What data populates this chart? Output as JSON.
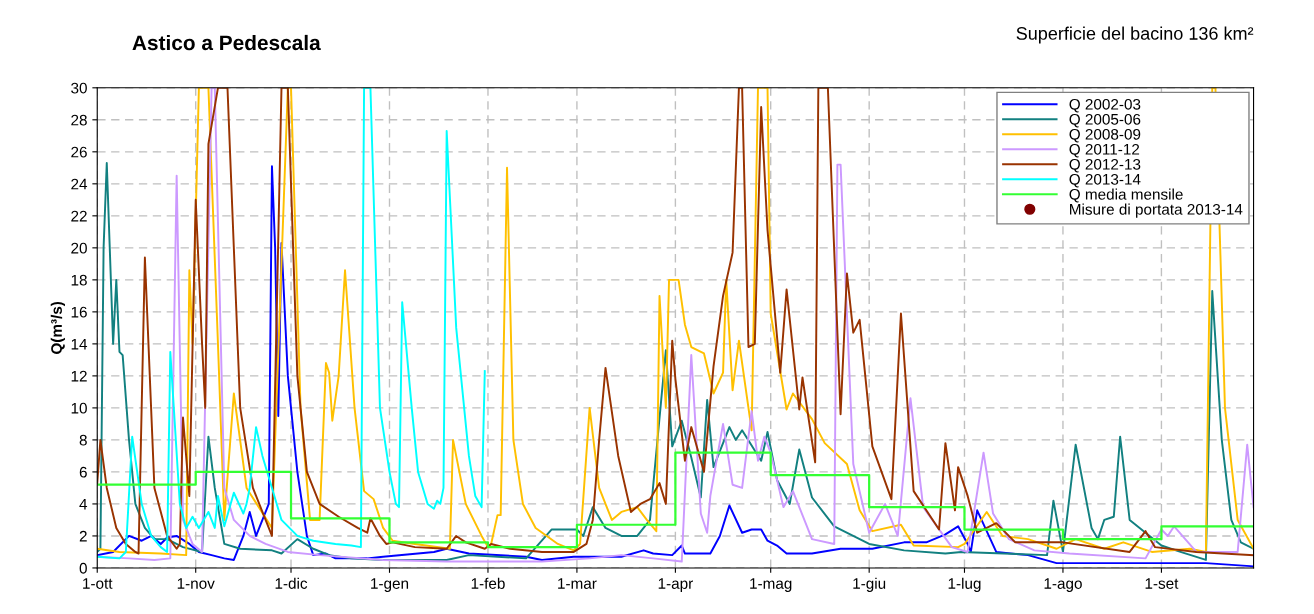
{
  "chart_data": {
    "type": "line",
    "title": "Astico a Pedescala",
    "subtitle": "Superficie del bacino 136 km²",
    "ylabel": "Q(m³/s)",
    "xlim": [
      "2013-10-01",
      "2014-09-30"
    ],
    "xticks": [
      {
        "value": "2013-10-01",
        "label": "1-ott"
      },
      {
        "value": "2013-11-01",
        "label": "1-nov"
      },
      {
        "value": "2013-12-01",
        "label": "1-dic"
      },
      {
        "value": "2014-01-01",
        "label": "1-gen"
      },
      {
        "value": "2014-02-01",
        "label": "1-feb"
      },
      {
        "value": "2014-03-01",
        "label": "1-mar"
      },
      {
        "value": "2014-04-01",
        "label": "1-apr"
      },
      {
        "value": "2014-05-01",
        "label": "1-mag"
      },
      {
        "value": "2014-06-01",
        "label": "1-giu"
      },
      {
        "value": "2014-07-01",
        "label": "1-lug"
      },
      {
        "value": "2014-08-01",
        "label": "1-ago"
      },
      {
        "value": "2014-09-01",
        "label": "1-set"
      }
    ],
    "ylim": [
      0,
      30
    ],
    "yticks": [
      0,
      2,
      4,
      6,
      8,
      10,
      12,
      14,
      16,
      18,
      20,
      22,
      24,
      26,
      28,
      30
    ],
    "grid": true,
    "legend": "top right",
    "line_style": "solid",
    "marker": "none",
    "series": [
      {
        "name": "Q 2002-03",
        "color": "#0000ff",
        "x": [
          "2013-10-01",
          "2013-10-06",
          "2013-10-11",
          "2013-10-15",
          "2013-10-18",
          "2013-10-21",
          "2013-10-23",
          "2013-10-26",
          "2013-10-30",
          "2013-11-02",
          "2013-11-06",
          "2013-11-10",
          "2013-11-13",
          "2013-11-16",
          "2013-11-18",
          "2013-11-20",
          "2013-11-22",
          "2013-11-24",
          "2013-11-25",
          "2013-11-26",
          "2013-11-27",
          "2013-11-28",
          "2013-11-30",
          "2013-12-03",
          "2013-12-06",
          "2013-12-08",
          "2013-12-12",
          "2013-12-15",
          "2013-12-25",
          "2013-12-30",
          "2014-01-15",
          "2014-01-19",
          "2014-01-26",
          "2014-02-13",
          "2014-02-18",
          "2014-02-28",
          "2014-03-15",
          "2014-03-22",
          "2014-03-25",
          "2014-03-31",
          "2014-04-03",
          "2014-04-04",
          "2014-04-12",
          "2014-04-15",
          "2014-04-18",
          "2014-04-22",
          "2014-04-25",
          "2014-04-28",
          "2014-04-30",
          "2014-05-03",
          "2014-05-06",
          "2014-05-14",
          "2014-05-23",
          "2014-06-02",
          "2014-06-12",
          "2014-06-19",
          "2014-06-25",
          "2014-06-29",
          "2014-07-02",
          "2014-07-03",
          "2014-07-05",
          "2014-07-11",
          "2014-07-21",
          "2014-07-30",
          "2014-08-27",
          "2014-09-15",
          "2014-09-30"
        ],
        "values": [
          0.8,
          1.0,
          2.0,
          1.7,
          2.0,
          1.5,
          1.9,
          2.0,
          1.5,
          1.0,
          0.8,
          0.6,
          0.5,
          2.0,
          3.5,
          2.0,
          3.0,
          4.0,
          25.1,
          20.0,
          9.5,
          20.3,
          12.0,
          6.0,
          2.0,
          0.8,
          0.9,
          0.6,
          0.6,
          0.7,
          1.0,
          1.2,
          0.9,
          0.7,
          0.5,
          0.7,
          0.7,
          1.1,
          0.9,
          0.8,
          1.4,
          0.9,
          0.9,
          2.0,
          3.9,
          2.2,
          2.4,
          2.4,
          1.7,
          1.4,
          0.9,
          0.9,
          1.2,
          1.2,
          1.6,
          1.6,
          2.1,
          2.6,
          1.5,
          1.0,
          3.6,
          1.0,
          0.8,
          0.3,
          0.3,
          0.3,
          0.1
        ]
      },
      {
        "name": "Q 2005-06",
        "color": "#128080",
        "x": [
          "2013-10-01",
          "2013-10-02",
          "2013-10-03",
          "2013-10-04",
          "2013-10-06",
          "2013-10-07",
          "2013-10-08",
          "2013-10-09",
          "2013-10-11",
          "2013-10-13",
          "2013-10-16",
          "2013-10-19",
          "2013-10-23",
          "2013-10-28",
          "2013-11-03",
          "2013-11-05",
          "2013-11-07",
          "2013-11-10",
          "2013-11-15",
          "2013-11-25",
          "2013-11-28",
          "2013-12-03",
          "2013-12-08",
          "2013-12-13",
          "2013-12-20",
          "2013-12-30",
          "2014-01-19",
          "2014-01-26",
          "2014-02-13",
          "2014-02-21",
          "2014-03-01",
          "2014-03-03",
          "2014-03-06",
          "2014-03-10",
          "2014-03-15",
          "2014-03-20",
          "2014-03-24",
          "2014-03-29",
          "2014-03-31",
          "2014-04-03",
          "2014-04-06",
          "2014-04-09",
          "2014-04-11",
          "2014-04-13",
          "2014-04-18",
          "2014-04-20",
          "2014-04-22",
          "2014-04-28",
          "2014-04-30",
          "2014-05-03",
          "2014-05-07",
          "2014-05-10",
          "2014-05-14",
          "2014-05-21",
          "2014-06-01",
          "2014-06-12",
          "2014-06-25",
          "2014-06-30",
          "2014-07-27",
          "2014-07-29",
          "2014-08-01",
          "2014-08-05",
          "2014-08-10",
          "2014-08-12",
          "2014-08-14",
          "2014-08-17",
          "2014-08-19",
          "2014-08-22",
          "2014-09-01",
          "2014-09-07",
          "2014-09-15",
          "2014-09-17",
          "2014-09-20",
          "2014-09-23",
          "2014-09-26",
          "2014-09-30"
        ],
        "values": [
          1.0,
          1.2,
          20.0,
          25.3,
          14.0,
          18.0,
          13.5,
          13.3,
          8.0,
          4.0,
          2.5,
          1.8,
          1.8,
          1.3,
          1.0,
          8.2,
          5.0,
          1.5,
          1.2,
          1.1,
          0.9,
          1.8,
          1.2,
          0.8,
          0.6,
          0.5,
          0.5,
          0.8,
          0.6,
          2.4,
          2.4,
          2.0,
          3.8,
          2.5,
          2.0,
          2.0,
          3.0,
          13.6,
          7.6,
          9.2,
          6.9,
          4.4,
          10.5,
          6.3,
          8.8,
          8.0,
          8.6,
          6.7,
          8.5,
          5.5,
          4.0,
          7.4,
          4.4,
          2.6,
          1.5,
          1.1,
          0.9,
          1.0,
          0.8,
          4.2,
          1.0,
          7.7,
          2.5,
          1.8,
          3.0,
          3.2,
          8.2,
          3.0,
          1.4,
          1.0,
          0.5,
          17.3,
          8.0,
          3.0,
          1.6,
          1.2
        ]
      },
      {
        "name": "Q 2008-09",
        "color": "#ffc000",
        "x": [
          "2013-10-01",
          "2013-10-08",
          "2013-10-21",
          "2013-10-29",
          "2013-10-30",
          "2013-10-31",
          "2013-11-02",
          "2013-11-05",
          "2013-11-08",
          "2013-11-10",
          "2013-11-13",
          "2013-11-17",
          "2013-11-25",
          "2013-11-30",
          "2013-12-01",
          "2013-12-04",
          "2013-12-07",
          "2013-12-10",
          "2013-12-12",
          "2013-12-13",
          "2013-12-14",
          "2013-12-16",
          "2013-12-18",
          "2013-12-21",
          "2013-12-24",
          "2013-12-27",
          "2013-12-30",
          "2014-01-02",
          "2014-01-09",
          "2014-01-20",
          "2014-01-21",
          "2014-01-25",
          "2014-01-30",
          "2014-02-01",
          "2014-02-02",
          "2014-02-04",
          "2014-02-05",
          "2014-02-07",
          "2014-02-09",
          "2014-02-12",
          "2014-02-16",
          "2014-02-23",
          "2014-02-28",
          "2014-03-02",
          "2014-03-05",
          "2014-03-08",
          "2014-03-12",
          "2014-03-15",
          "2014-03-20",
          "2014-03-23",
          "2014-03-26",
          "2014-03-27",
          "2014-03-29",
          "2014-03-30",
          "2014-04-02",
          "2014-04-04",
          "2014-04-06",
          "2014-04-10",
          "2014-04-13",
          "2014-04-16",
          "2014-04-17",
          "2014-04-19",
          "2014-04-21",
          "2014-04-25",
          "2014-04-27",
          "2014-04-30",
          "2014-05-01",
          "2014-05-06",
          "2014-05-08",
          "2014-05-14",
          "2014-05-18",
          "2014-05-25",
          "2014-05-29",
          "2014-06-02",
          "2014-06-11",
          "2014-06-15",
          "2014-06-29",
          "2014-07-01",
          "2014-07-08",
          "2014-07-13",
          "2014-07-21",
          "2014-07-30",
          "2014-08-05",
          "2014-08-14",
          "2014-08-20",
          "2014-08-29",
          "2014-09-10",
          "2014-09-15",
          "2014-09-17",
          "2014-09-18",
          "2014-09-21",
          "2014-09-25",
          "2014-09-30"
        ],
        "values": [
          1.2,
          1.0,
          0.9,
          0.8,
          18.6,
          14.0,
          30,
          30,
          14.0,
          3.0,
          10.9,
          5.0,
          2.5,
          30,
          30,
          10.0,
          3.0,
          3.0,
          12.8,
          12.2,
          9.2,
          12.0,
          18.6,
          10.0,
          4.8,
          4.3,
          2.5,
          1.7,
          1.5,
          1.2,
          8.0,
          4.0,
          2.0,
          1.3,
          1.5,
          3.3,
          3.3,
          25.0,
          8.0,
          4.0,
          2.5,
          1.5,
          1.1,
          1.5,
          10.0,
          5.0,
          3.0,
          3.5,
          3.8,
          3.0,
          2.3,
          17.0,
          10.0,
          18.0,
          18.0,
          15.2,
          13.8,
          13.4,
          10.9,
          12.2,
          18.0,
          11.1,
          14.2,
          8.6,
          30,
          30,
          15.9,
          9.9,
          10.9,
          9.3,
          7.8,
          6.5,
          3.6,
          2.3,
          2.7,
          1.4,
          1.3,
          1.5,
          3.5,
          2.0,
          1.8,
          1.2,
          1.8,
          1.2,
          1.6,
          1.0,
          1.2,
          1.0,
          30,
          30,
          10.0,
          3.0,
          1.2
        ]
      },
      {
        "name": "Q 2011-12",
        "color": "#cc99ff",
        "x": [
          "2013-10-01",
          "2013-10-11",
          "2013-10-19",
          "2013-10-24",
          "2013-10-26",
          "2013-10-28",
          "2013-10-31",
          "2013-11-03",
          "2013-11-06",
          "2013-11-07",
          "2013-11-10",
          "2013-11-13",
          "2013-11-18",
          "2013-11-23",
          "2013-11-30",
          "2013-12-10",
          "2013-12-30",
          "2014-01-19",
          "2014-02-18",
          "2014-03-05",
          "2014-03-15",
          "2014-03-25",
          "2014-04-03",
          "2014-04-06",
          "2014-04-09",
          "2014-04-11",
          "2014-04-12",
          "2014-04-16",
          "2014-04-19",
          "2014-04-22",
          "2014-04-25",
          "2014-04-27",
          "2014-04-29",
          "2014-05-01",
          "2014-05-05",
          "2014-05-08",
          "2014-05-14",
          "2014-05-21",
          "2014-05-22",
          "2014-05-23",
          "2014-05-27",
          "2014-06-01",
          "2014-06-06",
          "2014-06-10",
          "2014-06-14",
          "2014-06-18",
          "2014-06-27",
          "2014-07-02",
          "2014-07-07",
          "2014-07-10",
          "2014-07-15",
          "2014-07-23",
          "2014-08-03",
          "2014-08-27",
          "2014-09-01",
          "2014-09-03",
          "2014-09-05",
          "2014-09-12",
          "2014-09-25",
          "2014-09-28",
          "2014-09-30"
        ],
        "values": [
          0.7,
          0.6,
          0.5,
          0.6,
          24.5,
          3.0,
          1.5,
          1.0,
          30,
          30,
          5.0,
          3.0,
          2.0,
          1.5,
          1.0,
          0.8,
          0.5,
          0.4,
          0.4,
          0.6,
          0.8,
          0.6,
          0.4,
          13.3,
          3.4,
          2.2,
          4.5,
          9.0,
          5.2,
          5.0,
          9.8,
          6.7,
          8.2,
          7.2,
          3.8,
          4.8,
          1.8,
          1.5,
          25.2,
          25.2,
          6.5,
          2.2,
          4.0,
          2.0,
          10.6,
          3.8,
          1.3,
          1.0,
          7.2,
          3.4,
          1.8,
          1.1,
          0.9,
          0.6,
          2.4,
          2.0,
          2.6,
          1.0,
          1.0,
          7.7,
          3.8
        ]
      },
      {
        "name": "Q 2012-13",
        "color": "#993300",
        "x": [
          "2013-10-01",
          "2013-10-02",
          "2013-10-04",
          "2013-10-07",
          "2013-10-10",
          "2013-10-13",
          "2013-10-14",
          "2013-10-16",
          "2013-10-19",
          "2013-10-23",
          "2013-10-26",
          "2013-10-27",
          "2013-10-28",
          "2013-10-30",
          "2013-11-01",
          "2013-11-03",
          "2013-11-04",
          "2013-11-05",
          "2013-11-08",
          "2013-11-11",
          "2013-11-15",
          "2013-11-19",
          "2013-11-23",
          "2013-11-25",
          "2013-11-28",
          "2013-11-30",
          "2013-12-03",
          "2013-12-06",
          "2013-12-10",
          "2013-12-16",
          "2013-12-22",
          "2013-12-25",
          "2013-12-26",
          "2013-12-29",
          "2013-12-31",
          "2014-01-02",
          "2014-01-09",
          "2014-01-19",
          "2014-01-22",
          "2014-01-25",
          "2014-01-31",
          "2014-02-02",
          "2014-02-08",
          "2014-02-18",
          "2014-02-28",
          "2014-03-04",
          "2014-03-06",
          "2014-03-08",
          "2014-03-10",
          "2014-03-14",
          "2014-03-18",
          "2014-03-21",
          "2014-03-24",
          "2014-03-27",
          "2014-03-29",
          "2014-03-31",
          "2014-04-01",
          "2014-04-04",
          "2014-04-06",
          "2014-04-10",
          "2014-04-13",
          "2014-04-16",
          "2014-04-19",
          "2014-04-21",
          "2014-04-22",
          "2014-04-24",
          "2014-04-26",
          "2014-04-28",
          "2014-04-30",
          "2014-05-04",
          "2014-05-06",
          "2014-05-10",
          "2014-05-11",
          "2014-05-15",
          "2014-05-16",
          "2014-05-19",
          "2014-05-23",
          "2014-05-25",
          "2014-05-27",
          "2014-05-29",
          "2014-06-02",
          "2014-06-08",
          "2014-06-11",
          "2014-06-15",
          "2014-06-23",
          "2014-06-25",
          "2014-06-28",
          "2014-06-29",
          "2014-07-02",
          "2014-07-05",
          "2014-07-11",
          "2014-07-17",
          "2014-08-01",
          "2014-08-22",
          "2014-08-27",
          "2014-08-30",
          "2014-09-12",
          "2014-09-30"
        ],
        "values": [
          5.3,
          8.0,
          5.0,
          2.5,
          1.5,
          1.0,
          0.9,
          19.4,
          5.0,
          2.0,
          1.2,
          1.5,
          9.4,
          4.5,
          23.0,
          14.0,
          10.0,
          26.5,
          30,
          30,
          10.0,
          5.0,
          3.0,
          2.0,
          30,
          30,
          12.0,
          6.0,
          4.0,
          3.2,
          2.5,
          2.2,
          3.1,
          2.0,
          1.5,
          1.6,
          1.3,
          1.2,
          2.0,
          1.6,
          1.2,
          1.5,
          1.2,
          1.0,
          1.0,
          1.5,
          3.0,
          8.0,
          12.5,
          7.0,
          3.5,
          4.0,
          4.3,
          5.3,
          4.0,
          14.2,
          11.8,
          6.7,
          8.8,
          6.0,
          12.6,
          17.0,
          19.7,
          30,
          30,
          13.8,
          14.0,
          28.8,
          21.1,
          12.2,
          17.4,
          9.9,
          11.9,
          6.6,
          30,
          30,
          9.6,
          18.4,
          14.7,
          15.5,
          7.6,
          4.3,
          15.9,
          4.8,
          2.4,
          7.8,
          3.6,
          6.3,
          4.5,
          2.2,
          2.8,
          1.6,
          1.6,
          1.0,
          2.3,
          1.3,
          1.0,
          0.8
        ]
      },
      {
        "name": "Q 2013-14",
        "color": "#00ffff",
        "x": [
          "2013-10-01",
          "2013-10-08",
          "2013-10-10",
          "2013-10-12",
          "2013-10-15",
          "2013-10-18",
          "2013-10-21",
          "2013-10-23",
          "2013-10-24",
          "2013-10-27",
          "2013-10-29",
          "2013-10-31",
          "2013-11-02",
          "2013-11-05",
          "2013-11-07",
          "2013-11-08",
          "2013-11-10",
          "2013-11-13",
          "2013-11-16",
          "2013-11-17",
          "2013-11-18",
          "2013-11-20",
          "2013-11-22",
          "2013-11-25",
          "2013-11-28",
          "2013-12-03",
          "2013-12-08",
          "2013-12-15",
          "2013-12-20",
          "2013-12-23",
          "2013-12-24",
          "2013-12-26",
          "2013-12-29",
          "2014-01-01",
          "2014-01-03",
          "2014-01-04",
          "2014-01-05",
          "2014-01-08",
          "2014-01-10",
          "2014-01-13",
          "2014-01-15",
          "2014-01-16",
          "2014-01-17",
          "2014-01-18",
          "2014-01-19",
          "2014-01-22",
          "2014-01-26",
          "2014-01-28",
          "2014-01-30",
          "2014-01-31"
        ],
        "values": [
          0.7,
          0.6,
          1.0,
          8.2,
          4.0,
          2.0,
          1.3,
          1.0,
          13.5,
          4.0,
          2.5,
          3.2,
          2.5,
          3.5,
          2.5,
          4.5,
          2.6,
          4.7,
          3.4,
          4.0,
          5.0,
          8.8,
          7.0,
          5.0,
          3.0,
          2.0,
          1.7,
          1.5,
          1.4,
          1.3,
          30,
          30,
          10.0,
          6.0,
          4.0,
          3.8,
          16.6,
          10.0,
          6.0,
          4.0,
          3.7,
          4.2,
          4.0,
          5.0,
          27.3,
          15.0,
          7.0,
          4.5,
          3.8,
          12.3
        ]
      },
      {
        "name": "Q media mensile",
        "color": "#33ff33",
        "type": "step",
        "x": [
          "2013-10-01",
          "2013-11-01",
          "2013-12-01",
          "2014-01-01",
          "2014-02-01",
          "2014-03-01",
          "2014-04-01",
          "2014-05-01",
          "2014-06-01",
          "2014-07-01",
          "2014-08-01",
          "2014-09-01",
          "2014-09-30"
        ],
        "values": [
          5.2,
          6.0,
          3.1,
          1.6,
          1.3,
          2.7,
          7.2,
          5.8,
          3.8,
          2.4,
          1.8,
          2.6,
          2.6
        ]
      },
      {
        "name": "Misure di portata 2013-14",
        "color": "#800000",
        "type": "scatter",
        "marker": "circle"
      }
    ]
  }
}
